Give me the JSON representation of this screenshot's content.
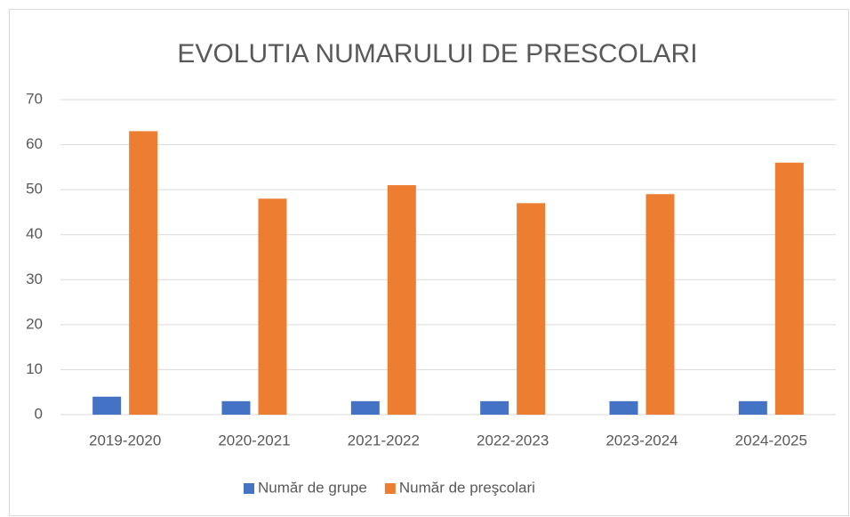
{
  "chart_data": {
    "type": "bar",
    "title": "EVOLUTIA NUMARULUI DE PRESCOLARI",
    "categories": [
      "2019-2020",
      "2020-2021",
      "2021-2022",
      "2022-2023",
      "2023-2024",
      "2024-2025"
    ],
    "series": [
      {
        "name": "Număr de grupe",
        "color": "#4472c4",
        "values": [
          4,
          3,
          3,
          3,
          3,
          3
        ]
      },
      {
        "name": "Număr de preşcolari",
        "color": "#ed7d31",
        "values": [
          63,
          48,
          51,
          47,
          49,
          56
        ]
      }
    ],
    "ylim": [
      0,
      70
    ],
    "yticks": [
      0,
      10,
      20,
      30,
      40,
      50,
      60,
      70
    ],
    "grid": true,
    "legend": "bottom"
  }
}
